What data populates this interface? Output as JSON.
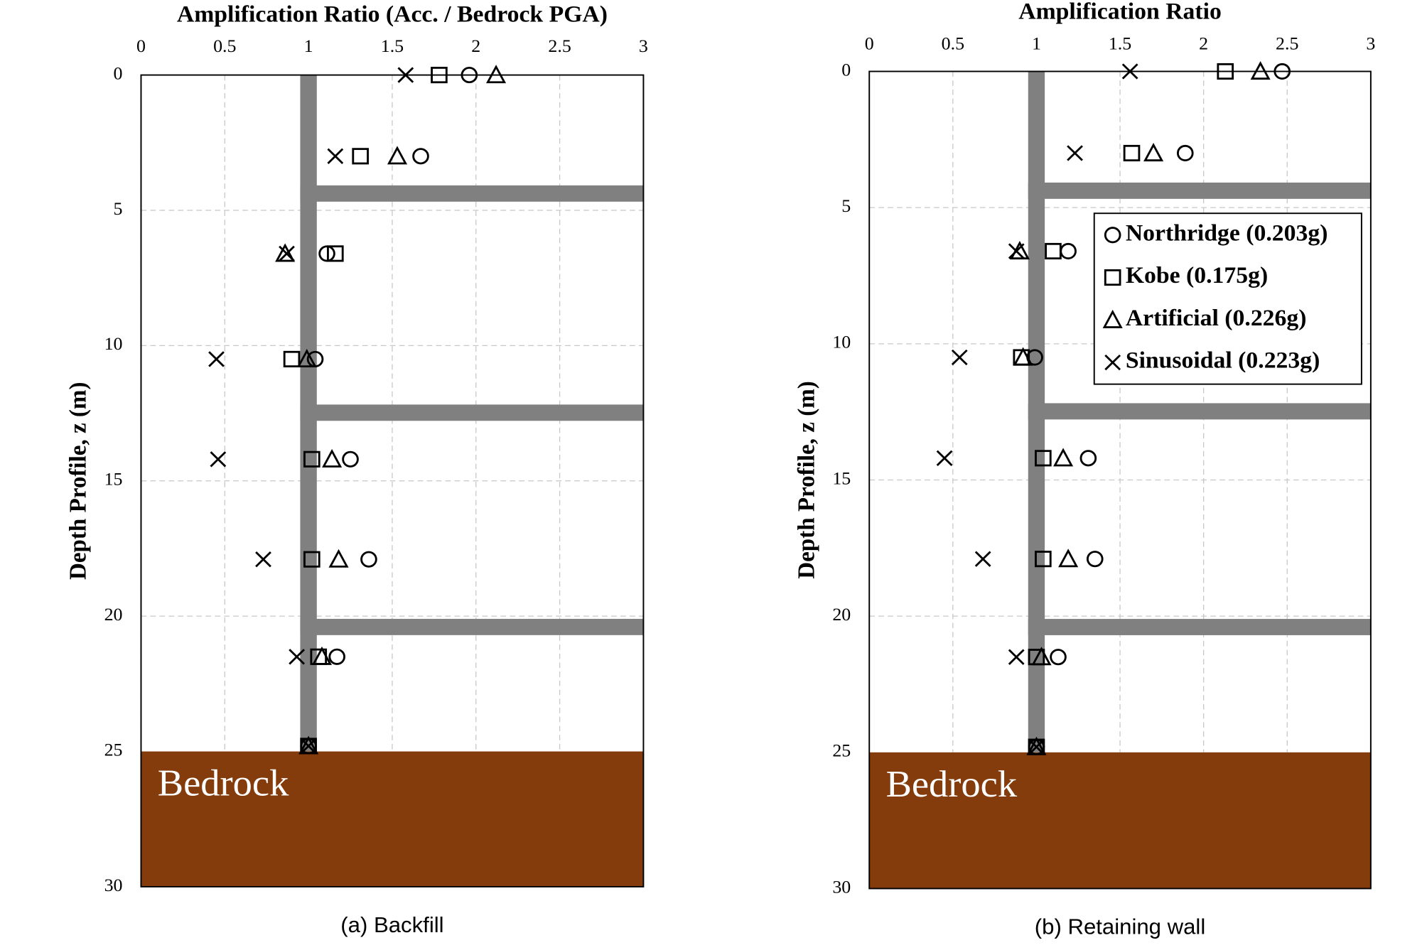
{
  "chart_data": [
    {
      "type": "scatter",
      "title": "Amplification Ratio (Acc. / Bedrock PGA)",
      "y_label": "Depth Profile, z (m)",
      "caption": "(a) Backfill",
      "region_label": "Bedrock",
      "xlim": [
        0,
        3
      ],
      "xticks": [
        0,
        0.5,
        1,
        1.5,
        2,
        2.5,
        3
      ],
      "ylim": [
        0,
        30
      ],
      "yticks": [
        0,
        5,
        10,
        15,
        20,
        25,
        30
      ],
      "y_inverted": true,
      "grid": true,
      "y": [
        0,
        3,
        6.6,
        10.5,
        14.2,
        17.9,
        21.5,
        24.8
      ],
      "series": [
        {
          "marker": "circle",
          "color": "#000000",
          "values": [
            1.96,
            1.67,
            1.11,
            1.04,
            1.25,
            1.36,
            1.17,
            1.0
          ]
        },
        {
          "marker": "square",
          "color": "#000000",
          "values": [
            1.78,
            1.31,
            1.16,
            0.9,
            1.02,
            1.02,
            1.06,
            1.0
          ]
        },
        {
          "marker": "triangle",
          "color": "#000000",
          "values": [
            2.12,
            1.53,
            0.86,
            0.99,
            1.14,
            1.18,
            1.08,
            1.0
          ]
        },
        {
          "marker": "cross",
          "color": "#000000",
          "values": [
            1.58,
            1.16,
            0.87,
            0.45,
            0.46,
            0.73,
            0.93,
            1.0
          ]
        }
      ]
    },
    {
      "type": "scatter",
      "title": "Amplification Ratio",
      "y_label": "Depth Profile, z (m)",
      "caption": "(b) Retaining  wall",
      "region_label": "Bedrock",
      "xlim": [
        0,
        3
      ],
      "xticks": [
        0,
        0.5,
        1,
        1.5,
        2,
        2.5,
        3
      ],
      "ylim": [
        0,
        30
      ],
      "yticks": [
        0,
        5,
        10,
        15,
        20,
        25,
        30
      ],
      "y_inverted": true,
      "grid": true,
      "legend": "upper-right",
      "y": [
        0,
        3,
        6.6,
        10.5,
        14.2,
        17.9,
        21.5,
        24.8
      ],
      "series": [
        {
          "name": "Northridge (0.203g)",
          "marker": "circle",
          "color": "#000000",
          "values": [
            2.47,
            1.89,
            1.19,
            0.99,
            1.31,
            1.35,
            1.13,
            1.0
          ]
        },
        {
          "name": "Kobe (0.175g)",
          "marker": "square",
          "color": "#000000",
          "values": [
            2.13,
            1.57,
            1.1,
            0.91,
            1.04,
            1.04,
            1.0,
            1.0
          ]
        },
        {
          "name": "Artificial (0.226g)",
          "marker": "triangle",
          "color": "#000000",
          "values": [
            2.34,
            1.7,
            0.9,
            0.92,
            1.16,
            1.19,
            1.03,
            1.0
          ]
        },
        {
          "name": "Sinusoidal (0.223g)",
          "marker": "cross",
          "color": "#000000",
          "values": [
            1.56,
            1.23,
            0.88,
            0.54,
            0.45,
            0.68,
            0.88,
            1.0
          ]
        }
      ]
    }
  ]
}
